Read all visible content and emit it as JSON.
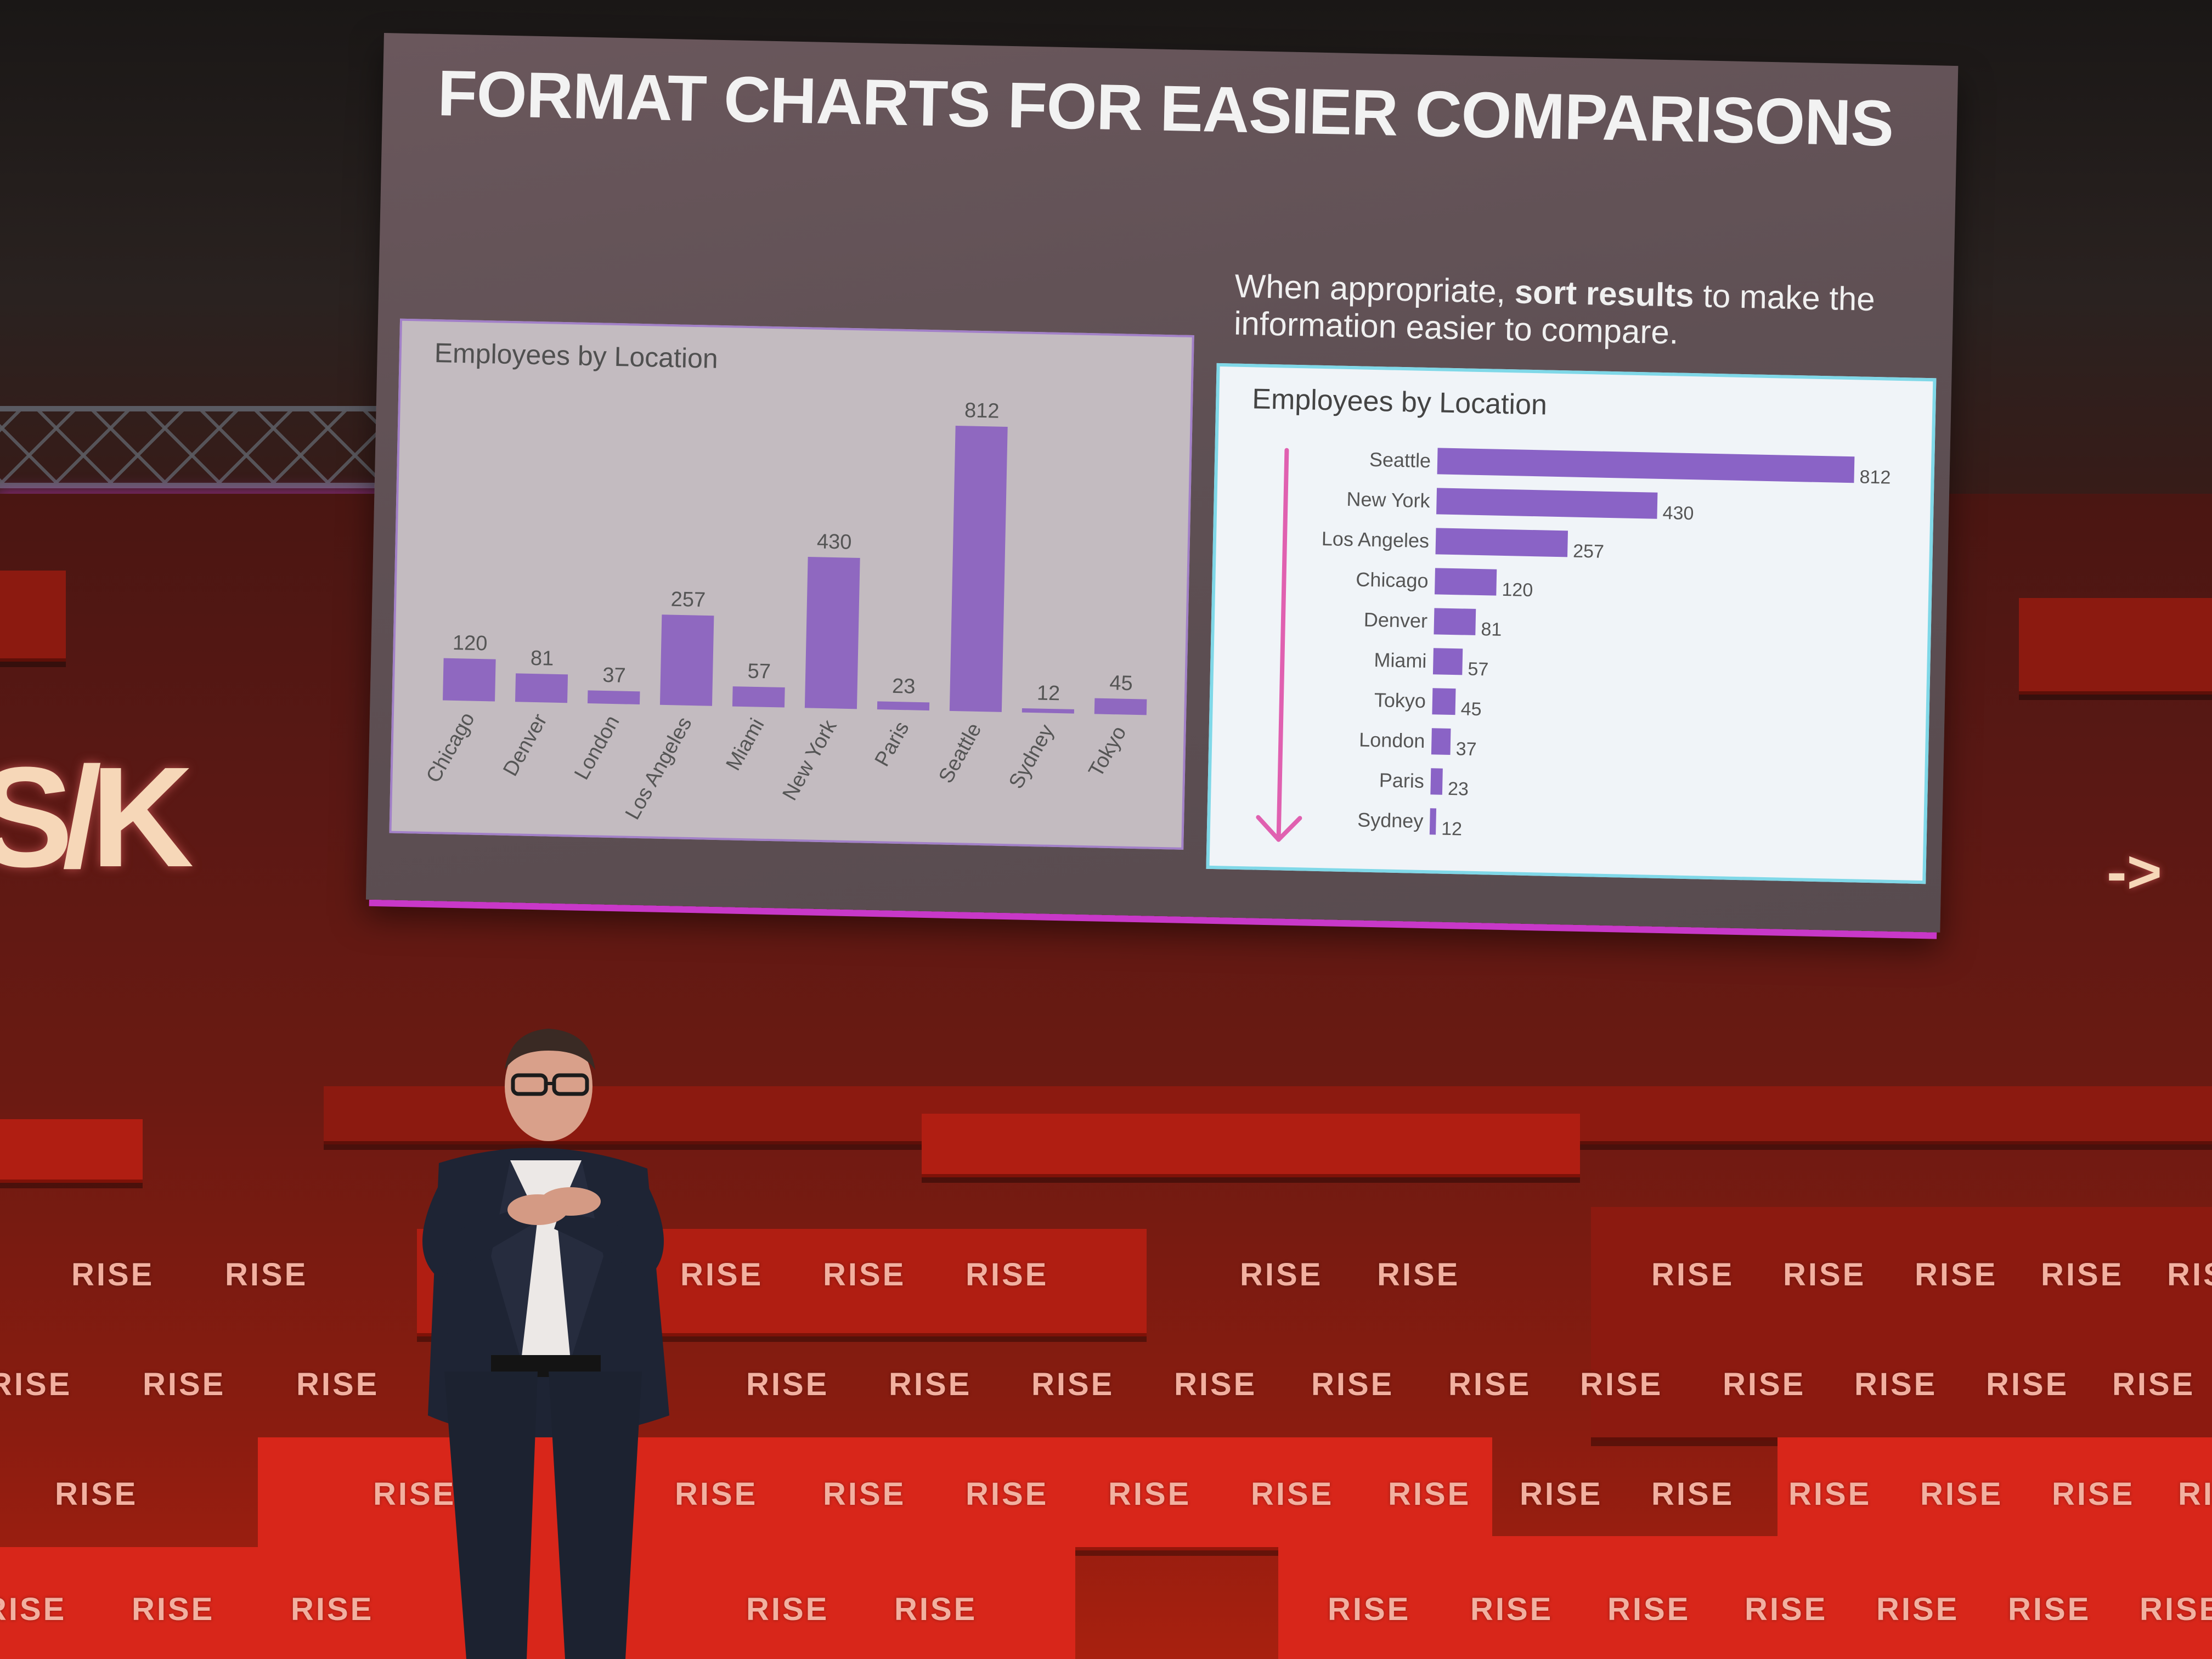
{
  "slide": {
    "title": "FORMAT CHARTS FOR EASIER COMPARISONS",
    "note_before": "When appropriate, ",
    "note_bold": "sort results",
    "note_after": " to make the information easier to compare."
  },
  "colors": {
    "bar": "#8f68c0",
    "bar_sorted": "#8a63c6",
    "arrow": "#e060b0",
    "stage_red": "#c0201a",
    "screen_glow": "#c838c8"
  },
  "stage_branding": {
    "word": "RISE",
    "left_logo": "S/K",
    "right_logo": "->"
  },
  "chart_data": [
    {
      "type": "bar",
      "title": "Employees by Location",
      "categories": [
        "Chicago",
        "Denver",
        "London",
        "Los Angeles",
        "Miami",
        "New York",
        "Paris",
        "Seattle",
        "Sydney",
        "Tokyo"
      ],
      "values": [
        120,
        81,
        37,
        257,
        57,
        430,
        23,
        812,
        12,
        45
      ],
      "data_labels": true,
      "grid": false,
      "ylim": [
        0,
        812
      ]
    },
    {
      "type": "bar",
      "orientation": "horizontal",
      "title": "Employees by Location",
      "categories": [
        "Seattle",
        "New York",
        "Los Angeles",
        "Chicago",
        "Denver",
        "Miami",
        "Tokyo",
        "London",
        "Paris",
        "Sydney"
      ],
      "values": [
        812,
        430,
        257,
        120,
        81,
        57,
        45,
        37,
        23,
        12
      ],
      "sorted": "descending",
      "data_labels": true,
      "grid": false,
      "xlim": [
        0,
        812
      ]
    }
  ]
}
